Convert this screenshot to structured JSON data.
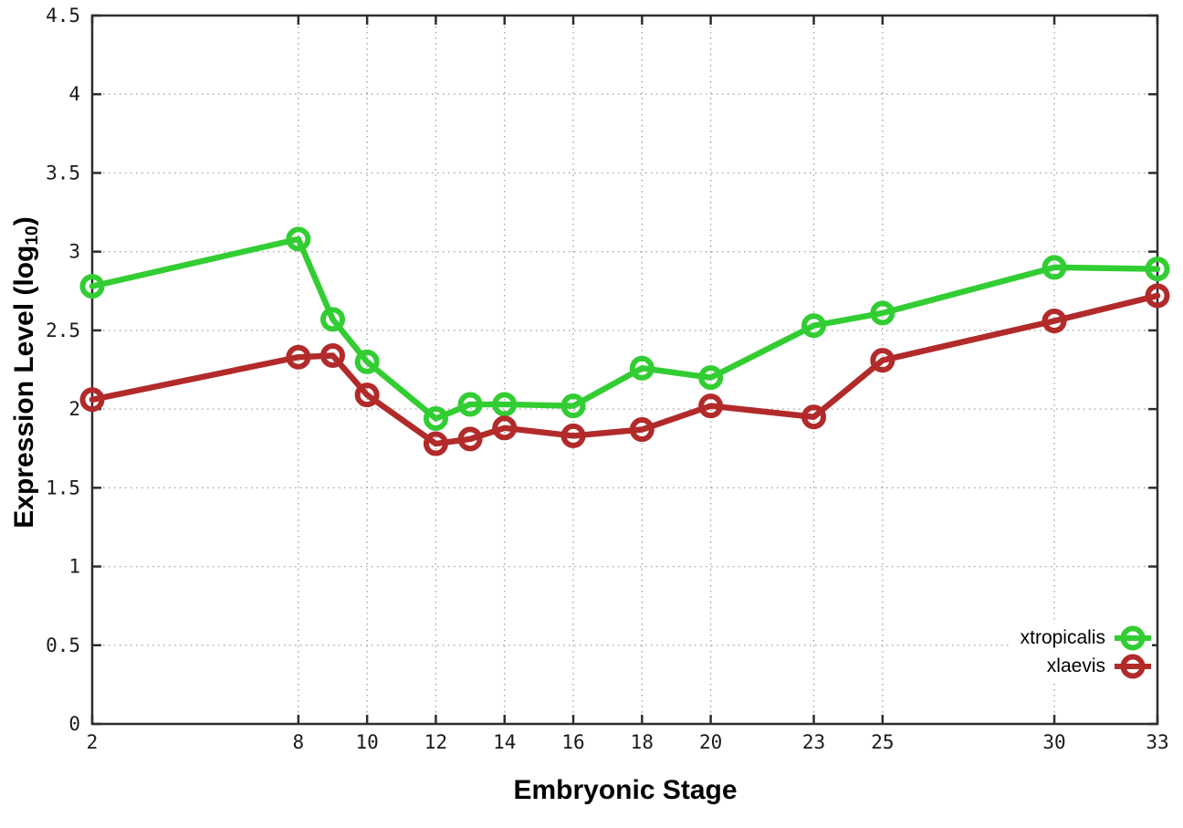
{
  "chart_data": {
    "type": "line",
    "title": "",
    "xlabel": "Embryonic Stage",
    "ylabel": "Expression Level (log10)",
    "ylabel_parts": {
      "prefix": "Expression Level (log",
      "sub": "10",
      "suffix": ")"
    },
    "xlim": [
      2,
      33
    ],
    "ylim": [
      0,
      4.5
    ],
    "x_ticks": [
      2,
      8,
      10,
      12,
      14,
      16,
      18,
      20,
      23,
      25,
      30,
      33
    ],
    "x_tick_labels": [
      "2",
      "8",
      "10",
      "12",
      "14",
      "16",
      "18",
      "20",
      "23",
      "25",
      "30",
      "33"
    ],
    "y_ticks": [
      0,
      0.5,
      1,
      1.5,
      2,
      2.5,
      3,
      3.5,
      4,
      4.5
    ],
    "y_tick_labels": [
      "0",
      "0.5",
      "1",
      "1.5",
      "2",
      "2.5",
      "3",
      "3.5",
      "4",
      "4.5"
    ],
    "grid": true,
    "marker": "open-circle",
    "legend_position": "bottom-right",
    "x": [
      2,
      8,
      9,
      10,
      12,
      13,
      14,
      16,
      18,
      20,
      23,
      25,
      30,
      33
    ],
    "series": [
      {
        "name": "xtropicalis",
        "color": "#32cd32",
        "values": [
          2.78,
          3.08,
          2.57,
          2.3,
          1.94,
          2.03,
          2.03,
          2.02,
          2.26,
          2.2,
          2.53,
          2.61,
          2.9,
          2.89
        ]
      },
      {
        "name": "xlaevis",
        "color": "#b22a2a",
        "values": [
          2.06,
          2.33,
          2.34,
          2.09,
          1.78,
          1.81,
          1.88,
          1.83,
          1.87,
          2.02,
          1.95,
          2.31,
          2.56,
          2.72
        ]
      }
    ],
    "axis_color": "#2e2e2e",
    "grid_color": "#a6a6a6"
  }
}
